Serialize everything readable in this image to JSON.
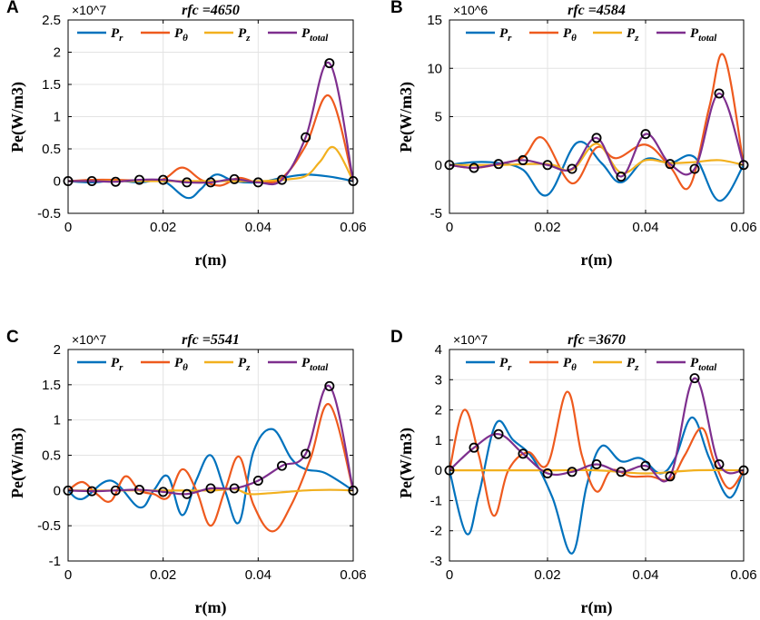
{
  "figure": {
    "x_unit_label": "r(m)",
    "y_unit_label": "Pe(W/m3)"
  },
  "legend_labels": {
    "Pr": "P_r",
    "Ptheta": "P_θ",
    "Pz": "P_z",
    "Ptotal": "P_total"
  },
  "colors": {
    "Pr": "#0072BD",
    "Ptheta": "#EE5A1E",
    "Pz": "#F2B01E",
    "Ptotal": "#7E2F8E",
    "marker": "#000000"
  },
  "chart_data": [
    {
      "type": "line",
      "panel": "A",
      "title": "rfc =4650",
      "xlabel": "r(m)",
      "ylabel": "Pe(W/m3)",
      "exponent": "×10^7",
      "xlim": [
        0,
        0.06
      ],
      "ylim": [
        -0.5,
        2.5
      ],
      "xticks": [
        0,
        0.02,
        0.04,
        0.06
      ],
      "xtick_labels": [
        "0",
        "0.02",
        "0.04",
        "0.06"
      ],
      "yticks": [
        -0.5,
        0,
        0.5,
        1,
        1.5,
        2,
        2.5
      ],
      "ytick_labels": [
        "-0.5",
        "0",
        "0.5",
        "1",
        "1.5",
        "2",
        "2.5"
      ],
      "grid": true,
      "series": [
        {
          "name": "Pr",
          "x": [
            0,
            0.005,
            0.01,
            0.015,
            0.02,
            0.025,
            0.028,
            0.031,
            0.035,
            0.04,
            0.045,
            0.05,
            0.055,
            0.06
          ],
          "values": [
            0,
            -0.02,
            0.01,
            -0.02,
            0.0,
            -0.26,
            -0.12,
            0.1,
            0.0,
            -0.02,
            0.05,
            0.1,
            0.07,
            0
          ]
        },
        {
          "name": "Ptheta",
          "x": [
            0,
            0.005,
            0.01,
            0.015,
            0.02,
            0.024,
            0.028,
            0.032,
            0.036,
            0.04,
            0.045,
            0.05,
            0.055,
            0.06
          ],
          "values": [
            0,
            0.02,
            0.02,
            0.01,
            0.03,
            0.21,
            0.02,
            -0.07,
            0.05,
            -0.02,
            0.05,
            0.55,
            1.32,
            0
          ]
        },
        {
          "name": "Pz",
          "x": [
            0,
            0.01,
            0.02,
            0.03,
            0.04,
            0.045,
            0.05,
            0.053,
            0.056,
            0.06
          ],
          "values": [
            0,
            0.0,
            0.0,
            0.0,
            0.0,
            0.02,
            0.08,
            0.3,
            0.52,
            0
          ]
        },
        {
          "name": "Ptotal",
          "x": [
            0,
            0.005,
            0.01,
            0.015,
            0.02,
            0.025,
            0.03,
            0.035,
            0.04,
            0.045,
            0.05,
            0.055,
            0.06
          ],
          "values": [
            0,
            0.0,
            -0.01,
            0.02,
            0.02,
            -0.02,
            -0.02,
            0.03,
            -0.02,
            0.02,
            0.68,
            1.83,
            0
          ],
          "markers": true
        }
      ]
    },
    {
      "type": "line",
      "panel": "B",
      "title": "rfc =4584",
      "xlabel": "r(m)",
      "ylabel": "Pe(W/m3)",
      "exponent": "×10^6",
      "xlim": [
        0,
        0.06
      ],
      "ylim": [
        -5,
        15
      ],
      "xticks": [
        0,
        0.02,
        0.04,
        0.06
      ],
      "xtick_labels": [
        "0",
        "0.02",
        "0.04",
        "0.06"
      ],
      "yticks": [
        -5,
        0,
        5,
        10,
        15
      ],
      "ytick_labels": [
        "-5",
        "0",
        "5",
        "10",
        "15"
      ],
      "grid": true,
      "series": [
        {
          "name": "Pr",
          "x": [
            0,
            0.005,
            0.01,
            0.015,
            0.02,
            0.026,
            0.031,
            0.035,
            0.04,
            0.045,
            0.05,
            0.055,
            0.06
          ],
          "values": [
            0,
            0.3,
            0.2,
            -0.5,
            -3.1,
            2.3,
            0.2,
            -1.8,
            0.6,
            0.2,
            0.8,
            -3.7,
            0
          ]
        },
        {
          "name": "Ptheta",
          "x": [
            0,
            0.005,
            0.01,
            0.015,
            0.019,
            0.025,
            0.03,
            0.034,
            0.04,
            0.045,
            0.049,
            0.053,
            0.056,
            0.06
          ],
          "values": [
            0,
            -0.3,
            0.1,
            0.8,
            2.8,
            -1.9,
            1.8,
            0.7,
            2.1,
            -0.2,
            -2.2,
            6.0,
            11.3,
            0
          ]
        },
        {
          "name": "Pz",
          "x": [
            0,
            0.01,
            0.02,
            0.025,
            0.03,
            0.035,
            0.04,
            0.045,
            0.05,
            0.055,
            0.06
          ],
          "values": [
            0,
            0.0,
            0.1,
            -0.5,
            2.2,
            -0.8,
            0.5,
            0.2,
            0.3,
            0.5,
            0
          ]
        },
        {
          "name": "Ptotal",
          "x": [
            0,
            0.005,
            0.01,
            0.015,
            0.02,
            0.025,
            0.03,
            0.035,
            0.04,
            0.045,
            0.05,
            0.055,
            0.06
          ],
          "values": [
            0,
            -0.3,
            0.1,
            0.5,
            0.0,
            -0.4,
            2.8,
            -1.2,
            3.2,
            0.1,
            -0.4,
            7.4,
            0
          ],
          "markers": true
        }
      ]
    },
    {
      "type": "line",
      "panel": "C",
      "title": "rfc =5541",
      "xlabel": "r(m)",
      "ylabel": "Pe(W/m3)",
      "exponent": "×10^7",
      "xlim": [
        0,
        0.06
      ],
      "ylim": [
        -1,
        2
      ],
      "xticks": [
        0,
        0.02,
        0.04,
        0.06
      ],
      "xtick_labels": [
        "0",
        "0.02",
        "0.04",
        "0.06"
      ],
      "yticks": [
        -1,
        -0.5,
        0,
        0.5,
        1,
        1.5,
        2
      ],
      "ytick_labels": [
        "-1",
        "-0.5",
        "0",
        "0.5",
        "1",
        "1.5",
        "2"
      ],
      "grid": true,
      "series": [
        {
          "name": "Pr",
          "x": [
            0,
            0.003,
            0.009,
            0.015,
            0.018,
            0.021,
            0.024,
            0.027,
            0.03,
            0.033,
            0.036,
            0.039,
            0.043,
            0.047,
            0.05,
            0.054,
            0.06
          ],
          "values": [
            0,
            -0.12,
            0.14,
            -0.24,
            0.0,
            0.2,
            -0.35,
            0.15,
            0.5,
            0.0,
            -0.45,
            0.55,
            0.87,
            0.45,
            0.3,
            0.25,
            0
          ]
        },
        {
          "name": "Ptheta",
          "x": [
            0,
            0.003,
            0.006,
            0.009,
            0.012,
            0.015,
            0.018,
            0.021,
            0.024,
            0.027,
            0.03,
            0.033,
            0.036,
            0.039,
            0.043,
            0.047,
            0.051,
            0.055,
            0.06
          ],
          "values": [
            0,
            0.12,
            -0.05,
            -0.15,
            0.2,
            0.0,
            -0.05,
            -0.1,
            0.3,
            0.0,
            -0.5,
            0.0,
            0.48,
            -0.2,
            -0.58,
            -0.2,
            0.45,
            1.22,
            0
          ]
        },
        {
          "name": "Pz",
          "x": [
            0,
            0.02,
            0.03,
            0.035,
            0.038,
            0.042,
            0.046,
            0.05,
            0.055,
            0.06
          ],
          "values": [
            0,
            0.0,
            0.0,
            0.02,
            -0.05,
            -0.04,
            -0.02,
            0.0,
            0.01,
            0
          ]
        },
        {
          "name": "Ptotal",
          "x": [
            0,
            0.005,
            0.01,
            0.015,
            0.02,
            0.025,
            0.03,
            0.035,
            0.04,
            0.045,
            0.05,
            0.055,
            0.06
          ],
          "values": [
            0,
            -0.01,
            0.0,
            0.01,
            -0.02,
            -0.05,
            0.03,
            0.03,
            0.14,
            0.35,
            0.52,
            1.48,
            0
          ],
          "markers": true
        }
      ]
    },
    {
      "type": "line",
      "panel": "D",
      "title": "rfc =3670",
      "xlabel": "r(m)",
      "ylabel": "Pe(W/m3)",
      "exponent": "×10^7",
      "xlim": [
        0,
        0.06
      ],
      "ylim": [
        -3,
        4
      ],
      "xticks": [
        0,
        0.02,
        0.04,
        0.06
      ],
      "xtick_labels": [
        "0",
        "0.02",
        "0.04",
        "0.06"
      ],
      "yticks": [
        -3,
        -2,
        -1,
        0,
        1,
        2,
        3,
        4
      ],
      "ytick_labels": [
        "-3",
        "-2",
        "-1",
        "0",
        "1",
        "2",
        "3",
        "4"
      ],
      "grid": true,
      "series": [
        {
          "name": "Pr",
          "x": [
            0,
            0.0035,
            0.006,
            0.0095,
            0.013,
            0.017,
            0.021,
            0.025,
            0.028,
            0.031,
            0.035,
            0.039,
            0.043,
            0.046,
            0.0495,
            0.053,
            0.057,
            0.06
          ],
          "values": [
            0,
            -2.1,
            -0.8,
            1.55,
            1.0,
            0.4,
            -0.9,
            -2.75,
            -0.5,
            0.8,
            0.3,
            0.4,
            -0.1,
            0.4,
            1.75,
            0.4,
            -0.9,
            0
          ]
        },
        {
          "name": "Ptheta",
          "x": [
            0,
            0.003,
            0.006,
            0.009,
            0.012,
            0.016,
            0.02,
            0.024,
            0.027,
            0.03,
            0.033,
            0.037,
            0.041,
            0.045,
            0.048,
            0.0515,
            0.054,
            0.057,
            0.06
          ],
          "values": [
            0,
            2.0,
            0.5,
            -1.5,
            0.0,
            0.6,
            0.2,
            2.6,
            0.5,
            -0.7,
            0.0,
            -0.2,
            -0.2,
            -0.3,
            0.5,
            1.4,
            0.3,
            -0.6,
            0
          ]
        },
        {
          "name": "Pz",
          "x": [
            0,
            0.01,
            0.02,
            0.03,
            0.04,
            0.05,
            0.06
          ],
          "values": [
            0,
            0.0,
            0.0,
            0.0,
            -0.1,
            0.0,
            0
          ]
        },
        {
          "name": "Ptotal",
          "x": [
            0,
            0.005,
            0.01,
            0.015,
            0.02,
            0.025,
            0.03,
            0.035,
            0.04,
            0.045,
            0.05,
            0.055,
            0.06
          ],
          "values": [
            0,
            0.75,
            1.2,
            0.55,
            -0.1,
            -0.05,
            0.2,
            -0.05,
            0.15,
            -0.2,
            3.05,
            0.2,
            0
          ],
          "markers": true
        }
      ]
    }
  ]
}
